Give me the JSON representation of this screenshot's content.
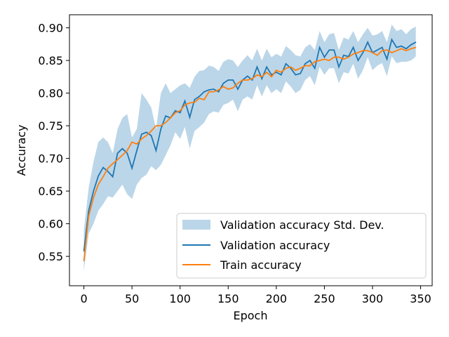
{
  "chart_data": {
    "type": "line",
    "title": "",
    "xlabel": "Epoch",
    "ylabel": "Accuracy",
    "xlim": [
      -15,
      362
    ],
    "ylim": [
      0.505,
      0.92
    ],
    "xticks": [
      0,
      50,
      100,
      150,
      200,
      250,
      300,
      350
    ],
    "yticks": [
      0.55,
      0.6,
      0.65,
      0.7,
      0.75,
      0.8,
      0.85,
      0.9
    ],
    "grid": false,
    "legend_position": "lower-right",
    "x": [
      0,
      5,
      10,
      15,
      20,
      25,
      30,
      35,
      40,
      45,
      50,
      55,
      60,
      65,
      70,
      75,
      80,
      85,
      90,
      95,
      100,
      105,
      110,
      115,
      120,
      125,
      130,
      135,
      140,
      145,
      150,
      155,
      160,
      165,
      170,
      175,
      180,
      185,
      190,
      195,
      200,
      205,
      210,
      215,
      220,
      225,
      230,
      235,
      240,
      245,
      250,
      255,
      260,
      265,
      270,
      275,
      280,
      285,
      290,
      295,
      300,
      305,
      310,
      315,
      320,
      325,
      330,
      335,
      340,
      345
    ],
    "series": [
      {
        "name": "Validation accuracy",
        "color": "#1f77b4",
        "values": [
          0.558,
          0.62,
          0.65,
          0.673,
          0.686,
          0.68,
          0.672,
          0.708,
          0.715,
          0.708,
          0.685,
          0.712,
          0.737,
          0.74,
          0.735,
          0.712,
          0.745,
          0.765,
          0.762,
          0.773,
          0.77,
          0.788,
          0.763,
          0.79,
          0.795,
          0.802,
          0.805,
          0.806,
          0.802,
          0.815,
          0.82,
          0.82,
          0.806,
          0.82,
          0.826,
          0.82,
          0.84,
          0.822,
          0.84,
          0.828,
          0.832,
          0.828,
          0.845,
          0.838,
          0.828,
          0.83,
          0.845,
          0.85,
          0.838,
          0.87,
          0.855,
          0.866,
          0.866,
          0.84,
          0.858,
          0.856,
          0.87,
          0.85,
          0.862,
          0.878,
          0.862,
          0.866,
          0.87,
          0.852,
          0.882,
          0.87,
          0.872,
          0.868,
          0.874,
          0.878
        ]
      },
      {
        "name": "Train accuracy",
        "color": "#ff7f0e",
        "values": [
          0.543,
          0.612,
          0.64,
          0.66,
          0.672,
          0.685,
          0.692,
          0.698,
          0.705,
          0.712,
          0.725,
          0.722,
          0.73,
          0.735,
          0.742,
          0.75,
          0.75,
          0.755,
          0.762,
          0.77,
          0.773,
          0.782,
          0.785,
          0.786,
          0.792,
          0.79,
          0.802,
          0.802,
          0.805,
          0.81,
          0.806,
          0.808,
          0.815,
          0.82,
          0.82,
          0.822,
          0.828,
          0.825,
          0.832,
          0.825,
          0.835,
          0.832,
          0.838,
          0.84,
          0.835,
          0.838,
          0.842,
          0.842,
          0.848,
          0.85,
          0.852,
          0.85,
          0.855,
          0.855,
          0.852,
          0.855,
          0.86,
          0.862,
          0.865,
          0.865,
          0.862,
          0.858,
          0.865,
          0.866,
          0.862,
          0.865,
          0.868,
          0.865,
          0.868,
          0.87
        ]
      }
    ],
    "band": {
      "name": "Validation accuracy Std. Dev.",
      "color": "#1f77b4",
      "opacity": 0.3,
      "lower": [
        0.528,
        0.585,
        0.6,
        0.62,
        0.63,
        0.642,
        0.64,
        0.65,
        0.66,
        0.645,
        0.638,
        0.66,
        0.67,
        0.675,
        0.688,
        0.682,
        0.69,
        0.705,
        0.72,
        0.74,
        0.73,
        0.748,
        0.715,
        0.742,
        0.748,
        0.755,
        0.768,
        0.772,
        0.77,
        0.782,
        0.785,
        0.79,
        0.772,
        0.79,
        0.795,
        0.79,
        0.812,
        0.795,
        0.812,
        0.8,
        0.806,
        0.8,
        0.818,
        0.81,
        0.8,
        0.805,
        0.82,
        0.826,
        0.812,
        0.84,
        0.828,
        0.838,
        0.838,
        0.815,
        0.832,
        0.83,
        0.845,
        0.822,
        0.835,
        0.855,
        0.835,
        0.842,
        0.846,
        0.826,
        0.856,
        0.846,
        0.848,
        0.848,
        0.85,
        0.856
      ],
      "upper": [
        0.59,
        0.655,
        0.695,
        0.725,
        0.732,
        0.725,
        0.708,
        0.745,
        0.762,
        0.768,
        0.732,
        0.745,
        0.8,
        0.79,
        0.778,
        0.745,
        0.8,
        0.815,
        0.8,
        0.806,
        0.812,
        0.815,
        0.808,
        0.825,
        0.834,
        0.835,
        0.842,
        0.84,
        0.834,
        0.848,
        0.852,
        0.85,
        0.84,
        0.85,
        0.858,
        0.85,
        0.868,
        0.85,
        0.868,
        0.855,
        0.86,
        0.856,
        0.872,
        0.866,
        0.858,
        0.856,
        0.87,
        0.875,
        0.866,
        0.895,
        0.878,
        0.89,
        0.892,
        0.866,
        0.885,
        0.882,
        0.895,
        0.878,
        0.89,
        0.9,
        0.888,
        0.89,
        0.895,
        0.878,
        0.905,
        0.895,
        0.898,
        0.89,
        0.898,
        0.902
      ]
    }
  }
}
